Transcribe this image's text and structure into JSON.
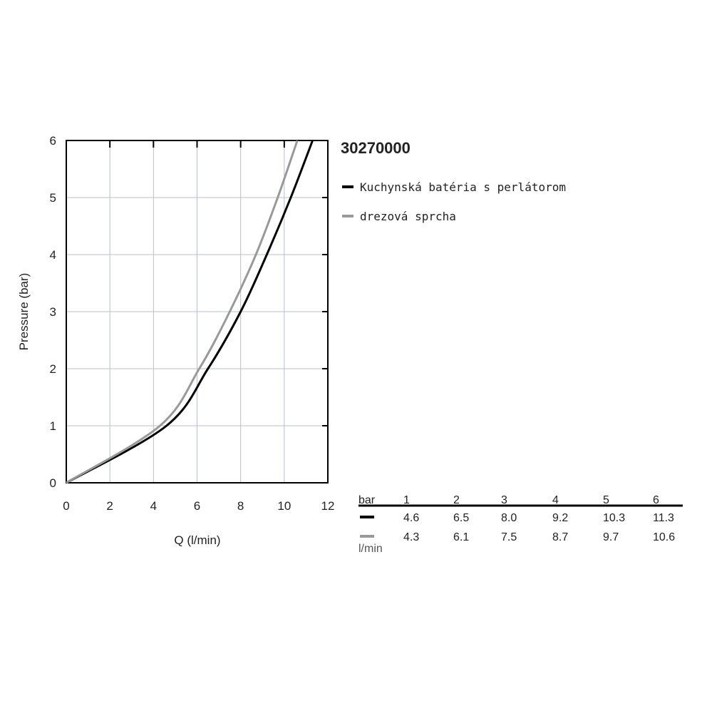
{
  "chart_data": {
    "type": "line",
    "title": "30270000",
    "x_label": "Q (l/min)",
    "y_label": "Pressure (bar)",
    "xlim": [
      0,
      12
    ],
    "ylim": [
      0,
      6
    ],
    "xticks": [
      0,
      2,
      4,
      6,
      8,
      10,
      12
    ],
    "yticks": [
      0,
      1,
      2,
      3,
      4,
      5,
      6
    ],
    "grid": true,
    "table_header": "bar",
    "table_unit": "l/min",
    "series": [
      {
        "name": "Kuchynská batéria s perlátorom",
        "color": "#000000",
        "x": [
          0,
          4.6,
          6.5,
          8.0,
          9.2,
          10.3,
          11.3
        ],
        "x_labels": [
          null,
          "4.6",
          "6.5",
          "8.0",
          "9.2",
          "10.3",
          "11.3"
        ],
        "values": [
          0,
          1,
          2,
          3,
          4,
          5,
          6
        ]
      },
      {
        "name": "drezová sprcha",
        "color": "#999999",
        "x": [
          0,
          4.3,
          6.1,
          7.5,
          8.7,
          9.7,
          10.6
        ],
        "x_labels": [
          null,
          "4.3",
          "6.1",
          "7.5",
          "8.7",
          "9.7",
          "10.6"
        ],
        "values": [
          0,
          1,
          2,
          3,
          4,
          5,
          6
        ]
      }
    ]
  }
}
